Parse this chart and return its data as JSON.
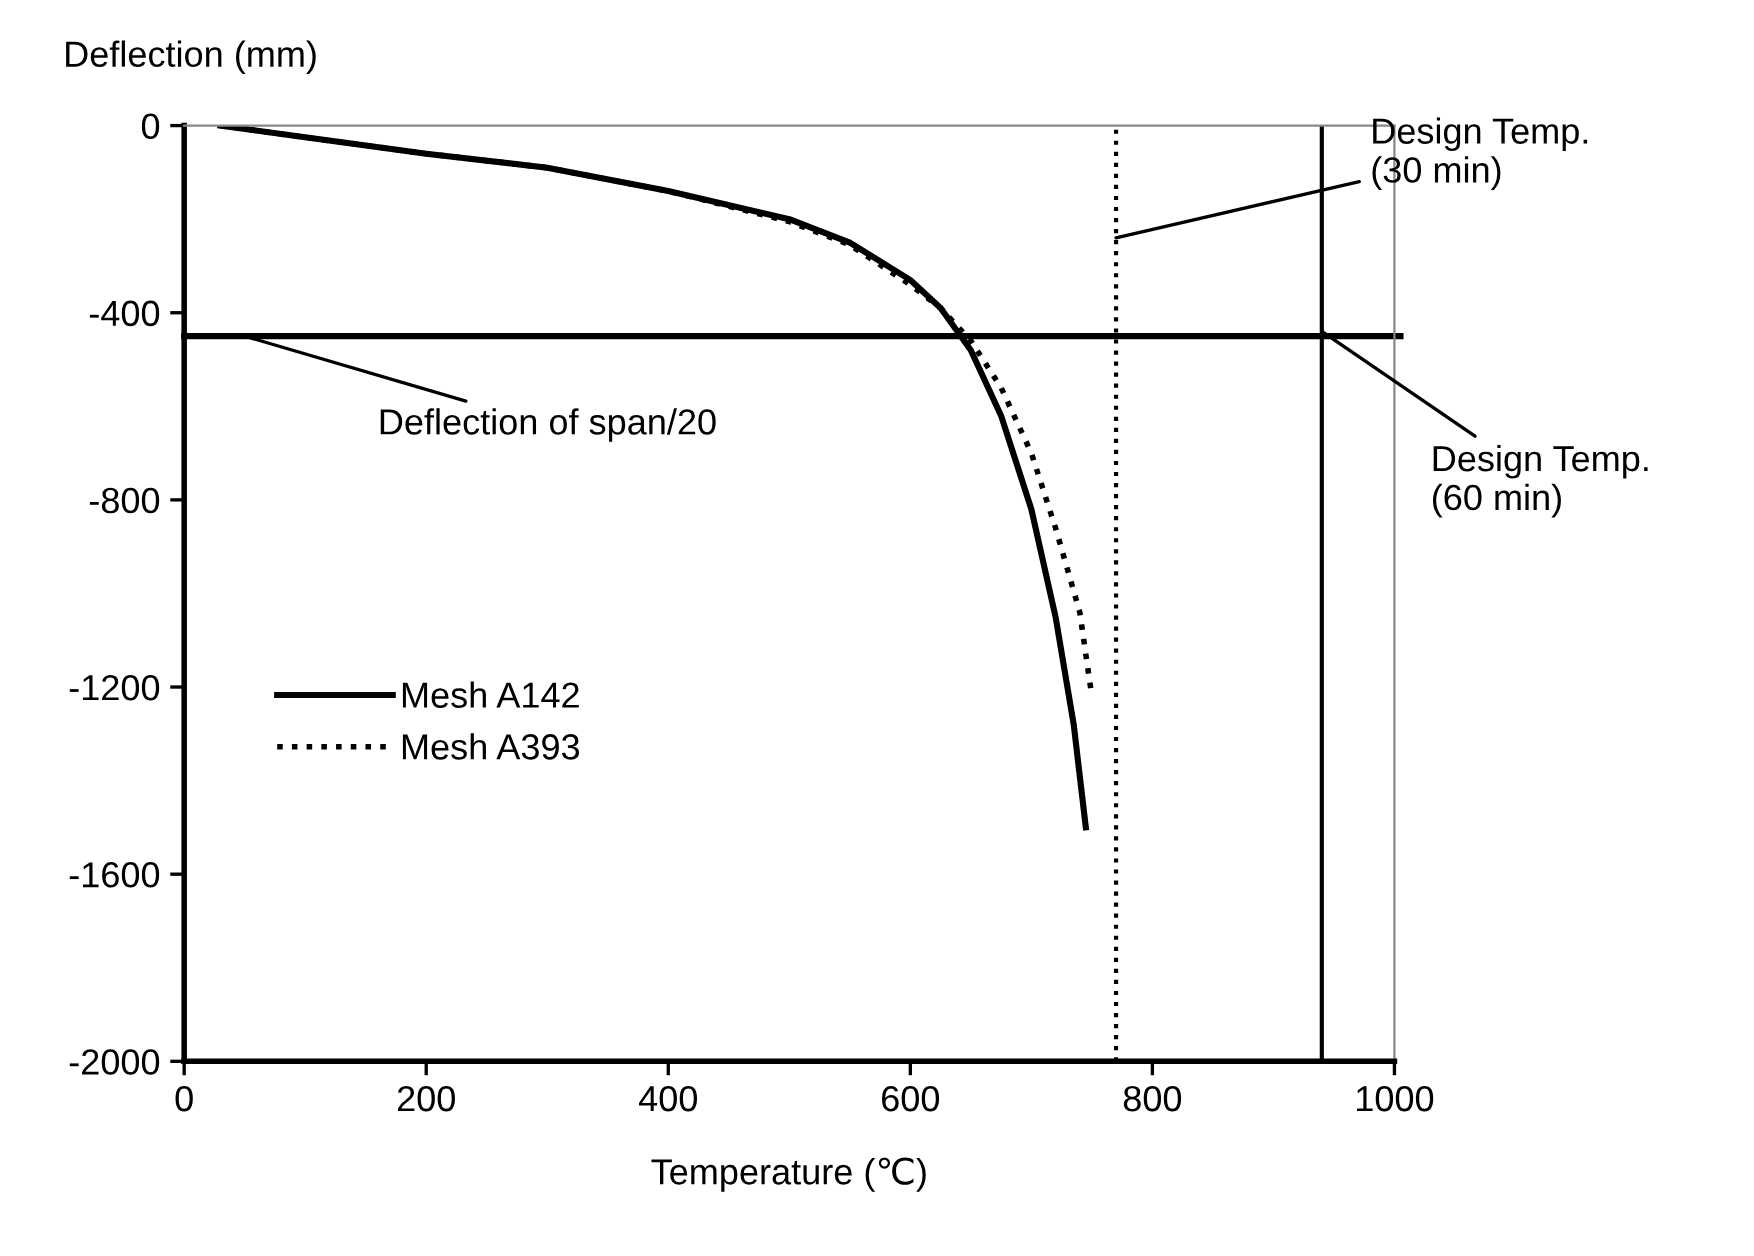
{
  "chart_data": {
    "type": "line",
    "xlabel": "Temperature (℃)",
    "ylabel": "Deflection (mm)",
    "xlim": [
      0,
      1000
    ],
    "xticks": [
      0,
      200,
      400,
      600,
      800,
      1000
    ],
    "ylim": [
      -2000,
      0
    ],
    "yticks": [
      -2000,
      -1600,
      -1200,
      -800,
      -400,
      0
    ],
    "grid": false,
    "legend": "left",
    "marker": "none",
    "series": [
      {
        "name": "Mesh A142",
        "color": "#000000",
        "line_style": "solid",
        "x": [
          30,
          100,
          200,
          300,
          400,
          500,
          550,
          600,
          625,
          650,
          675,
          700,
          720,
          735,
          745
        ],
        "values": [
          0,
          -25,
          -60,
          -90,
          -140,
          -200,
          -250,
          -330,
          -390,
          -480,
          -620,
          -820,
          -1050,
          -1280,
          -1500
        ]
      },
      {
        "name": "Mesh A393",
        "color": "#000000",
        "line_style": "dotted",
        "x": [
          30,
          100,
          200,
          300,
          400,
          500,
          550,
          600,
          625,
          650,
          675,
          700,
          720,
          740,
          750
        ],
        "values": [
          0,
          -25,
          -60,
          -90,
          -140,
          -205,
          -255,
          -340,
          -390,
          -460,
          -560,
          -700,
          -860,
          -1040,
          -1220
        ]
      }
    ],
    "ref_lines": [
      {
        "axis": "y",
        "value": -450,
        "label": "Deflection of span/20",
        "color": "#000000",
        "line_style": "solid"
      },
      {
        "axis": "x",
        "value": 770,
        "label": "Design Temp.\n(30 min)",
        "color": "#000000",
        "line_style": "dotted"
      },
      {
        "axis": "x",
        "value": 940,
        "label": "Design Temp.\n(60 min)",
        "color": "#000000",
        "line_style": "solid"
      }
    ]
  }
}
